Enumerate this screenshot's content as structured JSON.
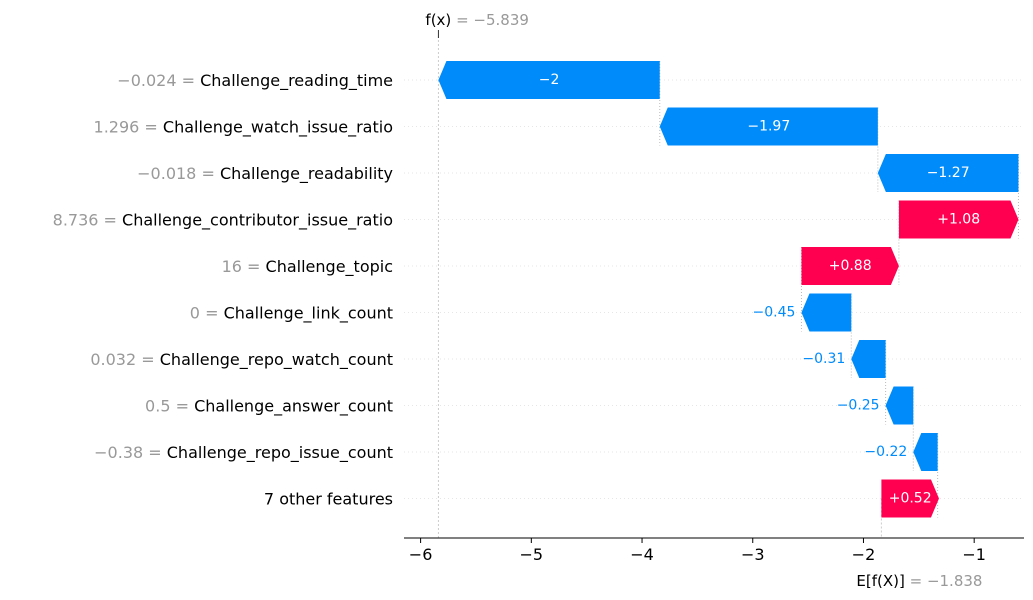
{
  "chart_data": {
    "type": "waterfall",
    "f_x": {
      "label_main": "f(x)",
      "label_val": " = −5.839",
      "value": -5.839
    },
    "e_fx": {
      "label_main": "E[f(X)]",
      "label_val": " = −1.838",
      "value": -1.838
    },
    "xlim": [
      -6.15,
      -0.55
    ],
    "xticks": [
      -6,
      -5,
      -4,
      -3,
      -2,
      -1
    ],
    "xtick_labels": [
      "−6",
      "−5",
      "−4",
      "−3",
      "−2",
      "−1"
    ],
    "features": [
      {
        "value_text": "−0.024 = ",
        "name": "Challenge_reading_time",
        "start": -3.84,
        "end": -5.839,
        "label": "−2",
        "label_inside": true
      },
      {
        "value_text": "1.296 = ",
        "name": "Challenge_watch_issue_ratio",
        "start": -1.87,
        "end": -3.84,
        "label": "−1.97",
        "label_inside": true
      },
      {
        "value_text": "−0.018 = ",
        "name": "Challenge_readability",
        "start": -0.6,
        "end": -1.87,
        "label": "−1.27",
        "label_inside": true
      },
      {
        "value_text": "8.736 = ",
        "name": "Challenge_contributor_issue_ratio",
        "start": -1.68,
        "end": -0.6,
        "label": "+1.08",
        "label_inside": true
      },
      {
        "value_text": "16 = ",
        "name": "Challenge_topic",
        "start": -2.56,
        "end": -1.68,
        "label": "+0.88",
        "label_inside": true
      },
      {
        "value_text": "0 = ",
        "name": "Challenge_link_count",
        "start": -2.11,
        "end": -2.56,
        "label": "−0.45",
        "label_inside": false
      },
      {
        "value_text": "0.032 = ",
        "name": "Challenge_repo_watch_count",
        "start": -1.8,
        "end": -2.11,
        "label": "−0.31",
        "label_inside": false
      },
      {
        "value_text": "0.5 = ",
        "name": "Challenge_answer_count",
        "start": -1.55,
        "end": -1.8,
        "label": "−0.25",
        "label_inside": false
      },
      {
        "value_text": "−0.38 = ",
        "name": "Challenge_repo_issue_count",
        "start": -1.33,
        "end": -1.55,
        "label": "−0.22",
        "label_inside": false
      },
      {
        "value_text": "",
        "name": "7 other features",
        "start": -1.838,
        "end": -1.318,
        "label": "+0.52",
        "label_inside": true
      }
    ],
    "colors": {
      "positive": "#ff0051",
      "negative": "#008bfb",
      "grid": "#dddddd",
      "axis": "#000000",
      "muted": "#999999"
    }
  }
}
